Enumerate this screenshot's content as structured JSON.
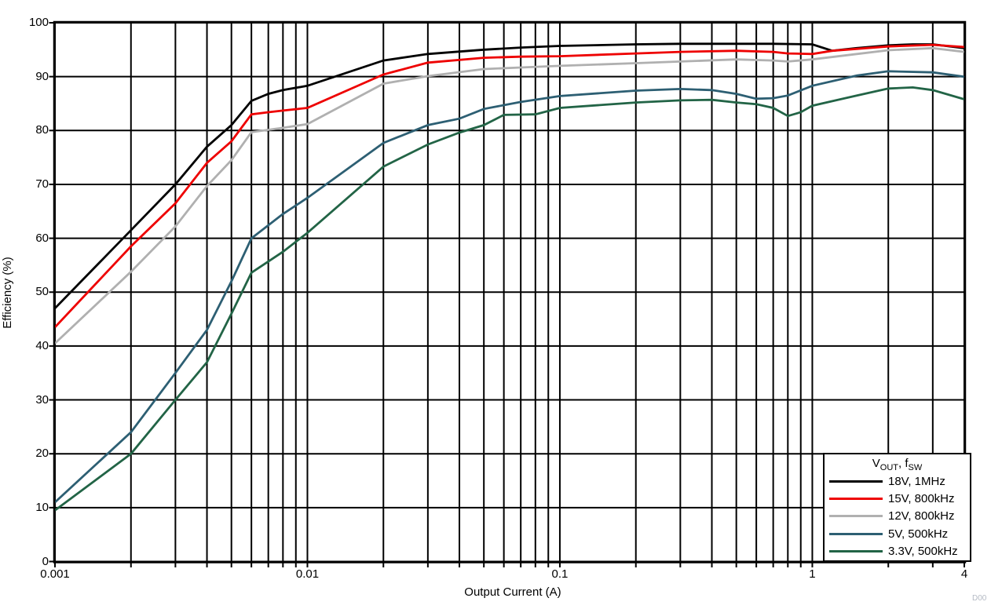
{
  "watermark": "D00",
  "axes": {
    "x_label": "Output Current (A)",
    "y_label": "Efficiency (%)",
    "x_ticks": [
      {
        "v": 0.001,
        "label": "0.001"
      },
      {
        "v": 0.01,
        "label": "0.01"
      },
      {
        "v": 0.1,
        "label": "0.1"
      },
      {
        "v": 1,
        "label": "1"
      },
      {
        "v": 4,
        "label": "4"
      }
    ],
    "y_ticks": [
      "0",
      "10",
      "20",
      "30",
      "40",
      "50",
      "60",
      "70",
      "80",
      "90",
      "100"
    ]
  },
  "legend": {
    "title": {
      "v": "V",
      "v_sub": "OUT",
      "sep": ", f",
      "f_sub": "SW"
    }
  },
  "chart_data": {
    "type": "line",
    "title": "",
    "xlabel": "Output Current (A)",
    "ylabel": "Efficiency (%)",
    "x_scale": "log",
    "xlim": [
      0.001,
      4
    ],
    "ylim": [
      0,
      100
    ],
    "grid": true,
    "grid_color": "#000000",
    "legend_position": "bottom-right",
    "legend_title": "VOUT, fSW",
    "series": [
      {
        "name": "18V, 1MHz",
        "color": "#000000",
        "points": [
          [
            0.001,
            47
          ],
          [
            0.002,
            61.5
          ],
          [
            0.003,
            70
          ],
          [
            0.004,
            77
          ],
          [
            0.005,
            81
          ],
          [
            0.006,
            85.5
          ],
          [
            0.007,
            86.8
          ],
          [
            0.008,
            87.5
          ],
          [
            0.01,
            88.3
          ],
          [
            0.02,
            93
          ],
          [
            0.03,
            94.2
          ],
          [
            0.05,
            95
          ],
          [
            0.07,
            95.4
          ],
          [
            0.1,
            95.7
          ],
          [
            0.2,
            96
          ],
          [
            0.3,
            96.1
          ],
          [
            0.5,
            96.1
          ],
          [
            0.7,
            96.1
          ],
          [
            1,
            96
          ],
          [
            1.2,
            94.8
          ],
          [
            1.5,
            95.3
          ],
          [
            2,
            95.8
          ],
          [
            2.5,
            96
          ],
          [
            3,
            96
          ],
          [
            4,
            95.3
          ]
        ]
      },
      {
        "name": "15V, 800kHz",
        "color": "#ee0000",
        "points": [
          [
            0.001,
            43.5
          ],
          [
            0.002,
            58.5
          ],
          [
            0.003,
            66.5
          ],
          [
            0.004,
            74
          ],
          [
            0.005,
            78
          ],
          [
            0.006,
            83
          ],
          [
            0.007,
            83.4
          ],
          [
            0.008,
            83.7
          ],
          [
            0.01,
            84.2
          ],
          [
            0.02,
            90.4
          ],
          [
            0.03,
            92.6
          ],
          [
            0.05,
            93.5
          ],
          [
            0.07,
            93.7
          ],
          [
            0.1,
            93.8
          ],
          [
            0.2,
            94.3
          ],
          [
            0.3,
            94.6
          ],
          [
            0.5,
            94.8
          ],
          [
            0.7,
            94.6
          ],
          [
            0.8,
            94.3
          ],
          [
            1,
            94.2
          ],
          [
            1.2,
            94.8
          ],
          [
            2,
            95.6
          ],
          [
            3,
            95.9
          ],
          [
            4,
            95.5
          ]
        ]
      },
      {
        "name": "12V, 800kHz",
        "color": "#b0b0b0",
        "points": [
          [
            0.001,
            40.5
          ],
          [
            0.002,
            53.8
          ],
          [
            0.003,
            62.2
          ],
          [
            0.004,
            69.7
          ],
          [
            0.005,
            74.5
          ],
          [
            0.006,
            79.7
          ],
          [
            0.008,
            80.5
          ],
          [
            0.01,
            81.2
          ],
          [
            0.02,
            88.7
          ],
          [
            0.03,
            90.1
          ],
          [
            0.05,
            91.4
          ],
          [
            0.07,
            91.7
          ],
          [
            0.1,
            92
          ],
          [
            0.2,
            92.5
          ],
          [
            0.3,
            92.8
          ],
          [
            0.5,
            93.2
          ],
          [
            0.7,
            93
          ],
          [
            0.8,
            92.8
          ],
          [
            1,
            93.2
          ],
          [
            1.5,
            94.2
          ],
          [
            2,
            94.9
          ],
          [
            3,
            95.3
          ],
          [
            4,
            94.6
          ]
        ]
      },
      {
        "name": "5V, 500kHz",
        "color": "#2d5f73",
        "points": [
          [
            0.001,
            11
          ],
          [
            0.002,
            24
          ],
          [
            0.003,
            35
          ],
          [
            0.004,
            43
          ],
          [
            0.005,
            52
          ],
          [
            0.006,
            60
          ],
          [
            0.008,
            64.5
          ],
          [
            0.01,
            67.5
          ],
          [
            0.02,
            77.7
          ],
          [
            0.03,
            81
          ],
          [
            0.04,
            82.2
          ],
          [
            0.05,
            84
          ],
          [
            0.07,
            85.3
          ],
          [
            0.1,
            86.4
          ],
          [
            0.2,
            87.4
          ],
          [
            0.3,
            87.7
          ],
          [
            0.4,
            87.5
          ],
          [
            0.5,
            86.8
          ],
          [
            0.6,
            85.9
          ],
          [
            0.7,
            86
          ],
          [
            0.8,
            86.5
          ],
          [
            1,
            88.3
          ],
          [
            1.5,
            90.2
          ],
          [
            2,
            91
          ],
          [
            3,
            90.8
          ],
          [
            4,
            90
          ]
        ]
      },
      {
        "name": "3.3V, 500kHz",
        "color": "#226446",
        "points": [
          [
            0.001,
            9.5
          ],
          [
            0.002,
            20
          ],
          [
            0.003,
            30
          ],
          [
            0.004,
            37
          ],
          [
            0.005,
            46
          ],
          [
            0.006,
            53.6
          ],
          [
            0.008,
            57.5
          ],
          [
            0.01,
            61
          ],
          [
            0.02,
            73.3
          ],
          [
            0.03,
            77.4
          ],
          [
            0.04,
            79.6
          ],
          [
            0.05,
            81
          ],
          [
            0.06,
            82.9
          ],
          [
            0.08,
            83
          ],
          [
            0.1,
            84.2
          ],
          [
            0.2,
            85.2
          ],
          [
            0.3,
            85.6
          ],
          [
            0.4,
            85.7
          ],
          [
            0.5,
            85.2
          ],
          [
            0.6,
            84.9
          ],
          [
            0.7,
            84.2
          ],
          [
            0.8,
            82.7
          ],
          [
            0.9,
            83.4
          ],
          [
            1,
            84.6
          ],
          [
            1.5,
            86.5
          ],
          [
            2,
            87.8
          ],
          [
            2.5,
            88
          ],
          [
            3,
            87.5
          ],
          [
            4,
            85.8
          ]
        ]
      }
    ]
  }
}
